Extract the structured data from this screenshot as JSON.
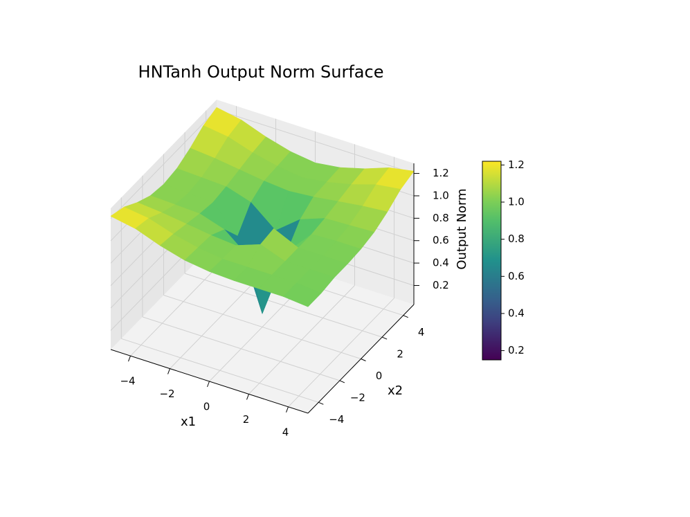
{
  "chart_data": {
    "type": "surface",
    "title": "HNTanh Output Norm Surface",
    "xlabel": "x1",
    "ylabel": "x2",
    "zlabel": "Output Norm",
    "colormap": "viridis",
    "x": [
      -5,
      -3.75,
      -2.5,
      -1.25,
      0,
      1.25,
      2.5,
      3.75,
      5
    ],
    "y": [
      -5,
      -3.75,
      -2.5,
      -1.25,
      0,
      1.25,
      2.5,
      3.75,
      5
    ],
    "z": [
      [
        1.22,
        1.18,
        1.1,
        1.04,
        1.02,
        1.04,
        1.1,
        1.18,
        1.22
      ],
      [
        1.18,
        1.15,
        1.08,
        1.03,
        1.01,
        1.03,
        1.08,
        1.15,
        1.18
      ],
      [
        1.1,
        1.08,
        1.05,
        1.02,
        1.0,
        1.02,
        1.05,
        1.08,
        1.1
      ],
      [
        1.04,
        1.03,
        1.02,
        0.95,
        0.77,
        0.95,
        1.02,
        1.03,
        1.04
      ],
      [
        1.01,
        1.0,
        1.0,
        0.77,
        0.15,
        0.77,
        1.0,
        1.0,
        1.01
      ],
      [
        1.0,
        1.0,
        1.08,
        1.1,
        0.77,
        0.94,
        1.02,
        1.03,
        1.04
      ],
      [
        1.0,
        1.0,
        1.0,
        1.0,
        1.0,
        1.02,
        1.05,
        1.08,
        1.1
      ],
      [
        1.0,
        1.0,
        1.0,
        1.0,
        1.01,
        1.03,
        1.08,
        1.15,
        1.18
      ],
      [
        0.98,
        0.98,
        1.0,
        1.0,
        1.01,
        1.04,
        1.1,
        1.18,
        1.22
      ]
    ],
    "xlim": [
      -5,
      5
    ],
    "ylim": [
      -5,
      5
    ],
    "zlim": [
      0.03,
      1.29
    ],
    "xticks": [
      {
        "value": -4,
        "label": "−4"
      },
      {
        "value": -2,
        "label": "−2"
      },
      0,
      2,
      4
    ],
    "yticks": [
      {
        "value": -4,
        "label": "−4"
      },
      {
        "value": -2,
        "label": "−2"
      },
      0,
      2,
      4
    ],
    "zticks": [
      0.2,
      0.4,
      0.6,
      0.8,
      {
        "value": 1,
        "label": "1.0"
      },
      1.2
    ],
    "clim": [
      0.15,
      1.22
    ],
    "cticks": [
      0.2,
      0.4,
      0.6,
      0.8,
      {
        "value": 1,
        "label": "1.0"
      },
      1.2
    ],
    "grid": true
  }
}
